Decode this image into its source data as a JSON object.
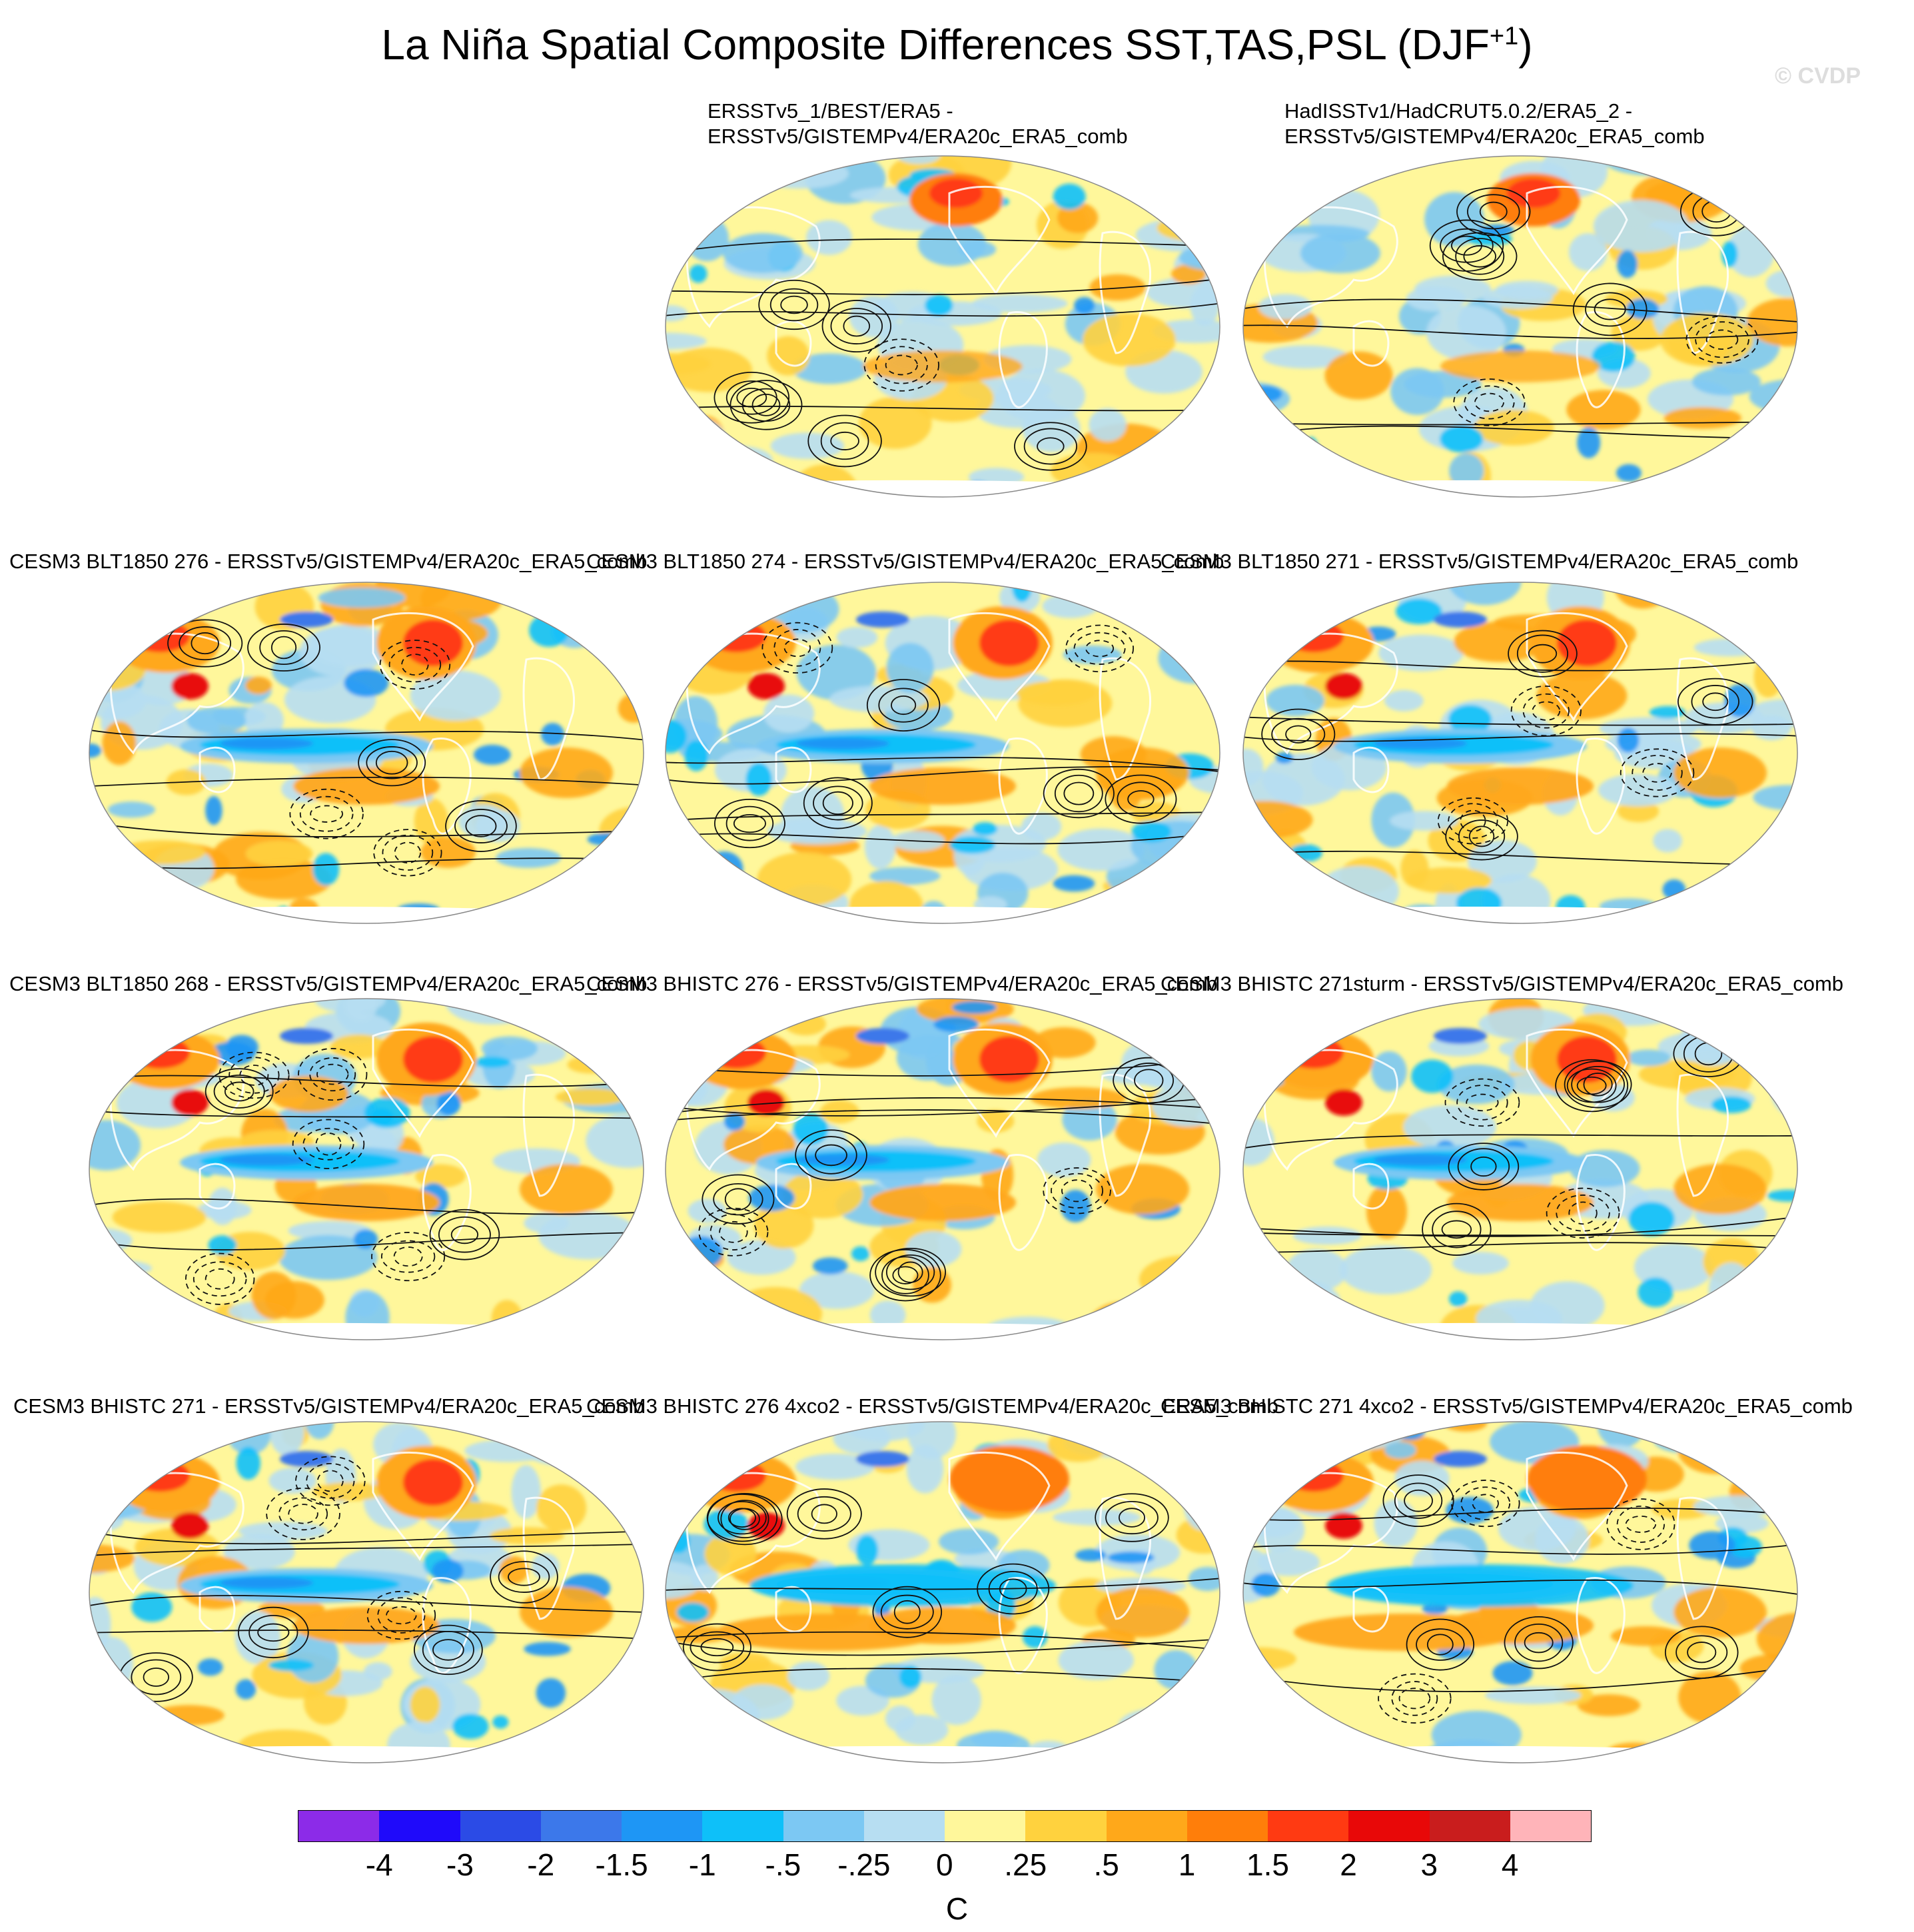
{
  "title_main": "La Niña Spatial Composite Differences SST,TAS,PSL (DJF",
  "title_sup": "+1",
  "title_close": ")",
  "copyright": "© CVDP",
  "chart_data": {
    "type": "heatmap",
    "layout": "grid",
    "units": "C",
    "panels": [
      {
        "title": "ERSSTv5_1/BEST/ERA5 -\nERSSTv5/GISTEMPv4/ERA20c_ERA5_comb",
        "pattern": "obs1"
      },
      {
        "title": "HadISSTv1/HadCRUT5.0.2/ERA5_2 -\nERSSTv5/GISTEMPv4/ERA20c_ERA5_comb",
        "pattern": "obs2"
      },
      {
        "title": "CESM3 BLT1850 276 - ERSSTv5/GISTEMPv4/ERA20c_ERA5_comb",
        "pattern": "model"
      },
      {
        "title": "CESM3 BLT1850 274 - ERSSTv5/GISTEMPv4/ERA20c_ERA5_comb",
        "pattern": "model"
      },
      {
        "title": "CESM3 BLT1850 271 - ERSSTv5/GISTEMPv4/ERA20c_ERA5_comb",
        "pattern": "model"
      },
      {
        "title": "CESM3 BLT1850 268 - ERSSTv5/GISTEMPv4/ERA20c_ERA5_comb",
        "pattern": "model"
      },
      {
        "title": "CESM3 BHISTC 276 - ERSSTv5/GISTEMPv4/ERA20c_ERA5_comb",
        "pattern": "model"
      },
      {
        "title": "CESM3 BHISTC 271sturm - ERSSTv5/GISTEMPv4/ERA20c_ERA5_comb",
        "pattern": "model"
      },
      {
        "title": "CESM3 BHISTC 271 - ERSSTv5/GISTEMPv4/ERA20c_ERA5_comb",
        "pattern": "model"
      },
      {
        "title": "CESM3 BHISTC 276 4xco2 - ERSSTv5/GISTEMPv4/ERA20c_ERA5_comb",
        "pattern": "model4x"
      },
      {
        "title": "CESM3 BHISTC 271 4xco2 - ERSSTv5/GISTEMPv4/ERA20c_ERA5_comb",
        "pattern": "model4x"
      }
    ],
    "colorbar": {
      "levels": [
        "-4",
        "-3",
        "-2",
        "-1.5",
        "-1",
        "-.5",
        "-.25",
        "0",
        ".25",
        ".5",
        "1",
        "1.5",
        "2",
        "3",
        "4"
      ],
      "colors": [
        "#8c2be8",
        "#1f0afa",
        "#2b4be6",
        "#3c78ea",
        "#1e96f5",
        "#0ec0f9",
        "#7cc8f3",
        "#b7def2",
        "#fff79b",
        "#ffd23e",
        "#ffa81a",
        "#ff7e0a",
        "#ff3a12",
        "#e80808",
        "#c91d1d",
        "#ffb4b9"
      ],
      "label": "C"
    }
  }
}
